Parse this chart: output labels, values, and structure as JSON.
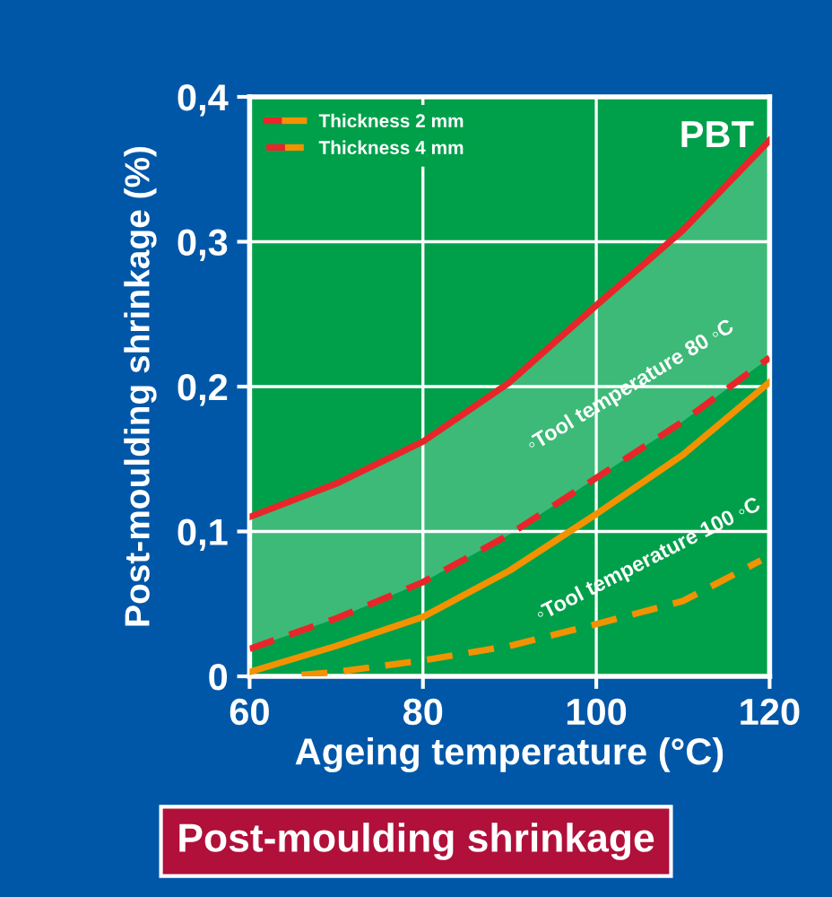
{
  "chart_data": {
    "type": "line",
    "title": "Post-moulding shrinkage",
    "xlabel": "Ageing temperature (°C)",
    "ylabel": "Post-moulding shrinkage (%)",
    "annotations": [
      "PBT",
      "◦Tool temperature 80 ◦C",
      "◦Tool temperature 100 ◦C"
    ],
    "x": [
      60,
      70,
      80,
      90,
      100,
      110,
      120
    ],
    "series": [
      {
        "name": "Thickness 2 mm",
        "color": "#e8262a",
        "line_style": "solid",
        "values": [
          0.11,
          0.133,
          0.162,
          0.203,
          0.256,
          0.308,
          0.37
        ]
      },
      {
        "name": "Thickness 4 mm",
        "color": "#e8262a",
        "line_style": "dashed",
        "values": [
          0.019,
          0.04,
          0.065,
          0.098,
          0.137,
          0.176,
          0.22
        ],
        "upper": [
          0.11,
          0.133,
          0.162,
          0.203,
          0.256,
          0.308,
          0.37
        ],
        "lower": [
          0.019,
          0.04,
          0.065,
          0.098,
          0.137,
          0.176,
          0.22
        ]
      },
      {
        "color": "#f39200",
        "line_style": "solid",
        "values": [
          0.003,
          0.021,
          0.041,
          0.073,
          0.112,
          0.153,
          0.203
        ]
      },
      {
        "color": "#f39200",
        "line_style": "dashed",
        "x": [
          66,
          70,
          80,
          90,
          100,
          110,
          119
        ],
        "values": [
          0.001,
          0.003,
          0.011,
          0.021,
          0.036,
          0.052,
          0.08
        ]
      }
    ],
    "xlim": [
      60,
      120
    ],
    "ylim": [
      0,
      0.4
    ],
    "xticks": [
      60,
      80,
      100,
      120
    ],
    "yticks": [
      0,
      {
        "value": 0.1,
        "label": "0,1"
      },
      {
        "value": 0.2,
        "label": "0,2"
      },
      {
        "value": 0.3,
        "label": "0,3"
      },
      {
        "value": 0.4,
        "label": "0,4"
      }
    ],
    "grid": true,
    "legend": "top left",
    "marker": "none"
  }
}
